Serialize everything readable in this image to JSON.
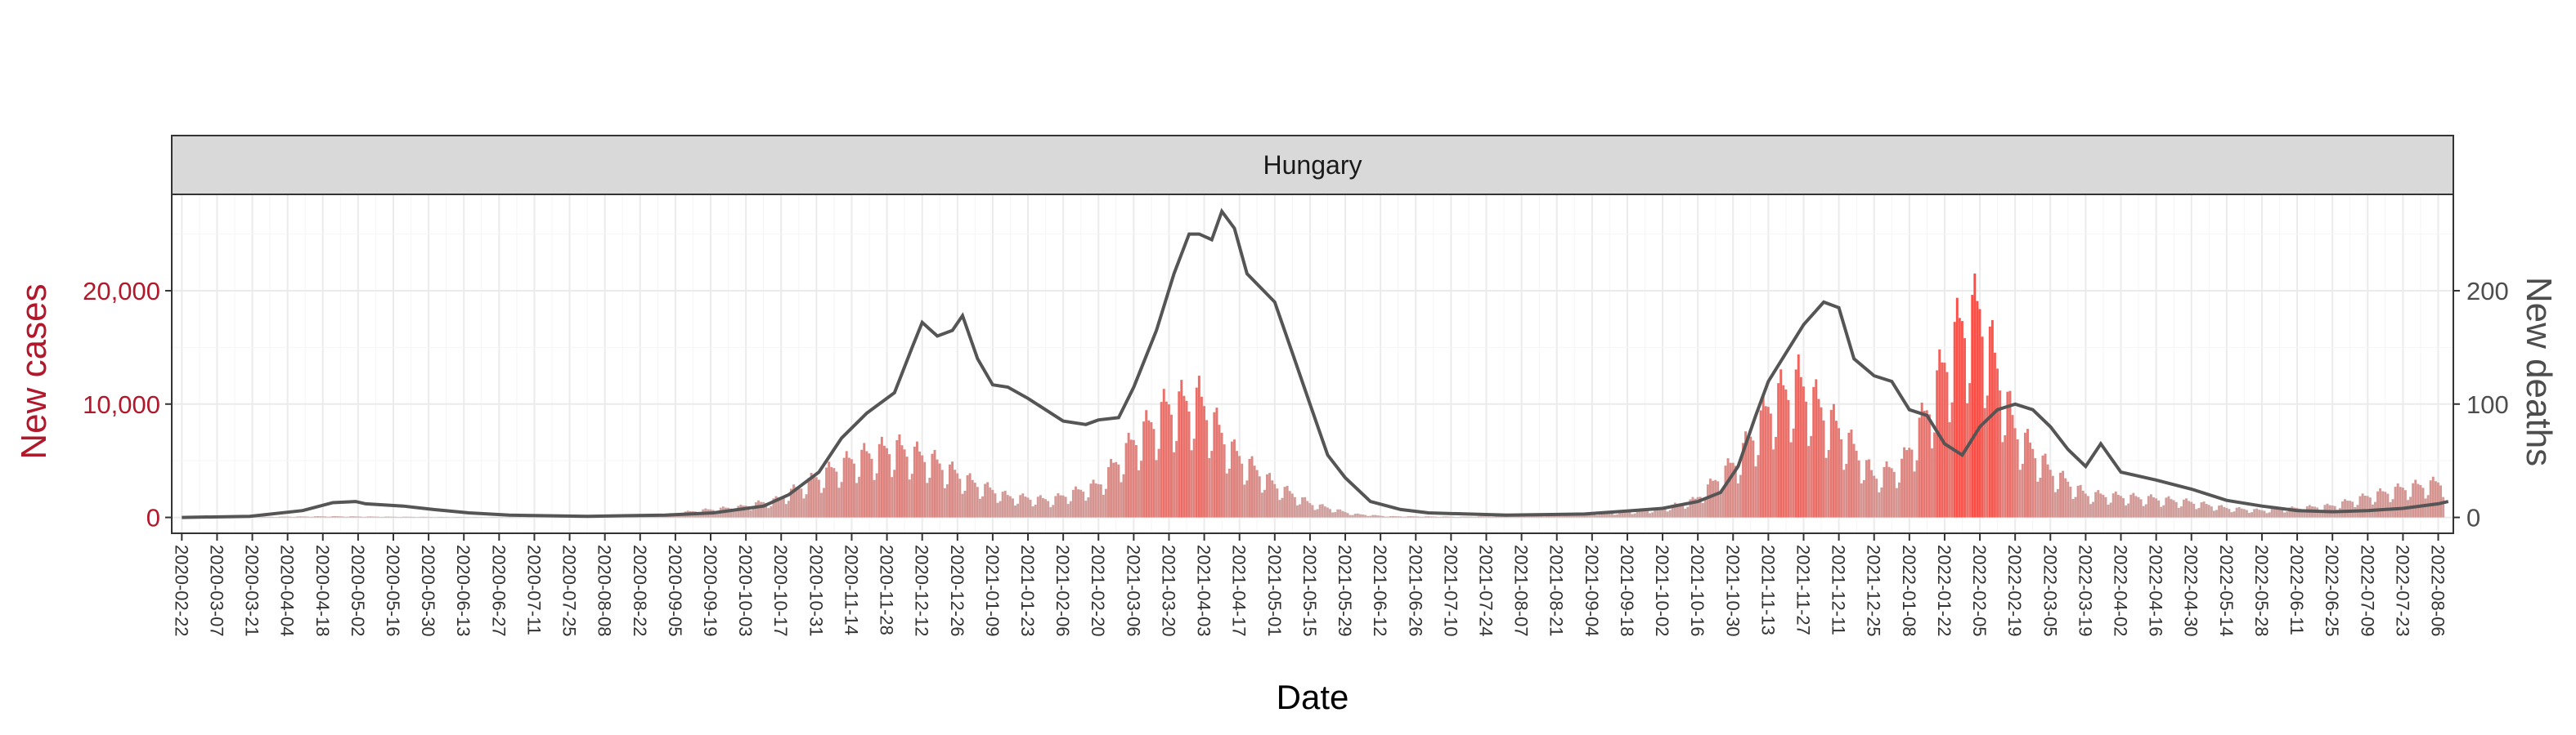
{
  "chart_data": {
    "type": "bar",
    "panel_title": "Hungary",
    "xlabel": "Date",
    "ylabel_left": "New cases",
    "ylabel_right": "New deaths",
    "ylim_left": [
      -1400,
      28500
    ],
    "ylim_right": [
      -14,
      285
    ],
    "yticks_left": [
      {
        "value": 0,
        "label": "0"
      },
      {
        "value": 10000,
        "label": "10,000"
      },
      {
        "value": 20000,
        "label": "20,000"
      }
    ],
    "yticks_right": [
      {
        "value": 0,
        "label": "0"
      },
      {
        "value": 100,
        "label": "100"
      },
      {
        "value": 200,
        "label": "200"
      }
    ],
    "x_range": [
      "2020-02-18",
      "2022-08-12"
    ],
    "x_tick_labels": [
      "2020-02-22",
      "2020-03-07",
      "2020-03-21",
      "2020-04-04",
      "2020-04-18",
      "2020-05-02",
      "2020-05-16",
      "2020-05-30",
      "2020-06-13",
      "2020-06-27",
      "2020-07-11",
      "2020-07-25",
      "2020-08-08",
      "2020-08-22",
      "2020-09-05",
      "2020-09-19",
      "2020-10-03",
      "2020-10-17",
      "2020-10-31",
      "2020-11-14",
      "2020-11-28",
      "2020-12-12",
      "2020-12-26",
      "2021-01-09",
      "2021-01-23",
      "2021-02-06",
      "2021-02-20",
      "2021-03-06",
      "2021-03-20",
      "2021-04-03",
      "2021-04-17",
      "2021-05-01",
      "2021-05-15",
      "2021-05-29",
      "2021-06-12",
      "2021-06-26",
      "2021-07-10",
      "2021-07-24",
      "2021-08-07",
      "2021-08-21",
      "2021-09-04",
      "2021-09-18",
      "2021-10-02",
      "2021-10-16",
      "2021-10-30",
      "2021-11-13",
      "2021-11-27",
      "2021-12-11",
      "2021-12-25",
      "2022-01-08",
      "2022-01-22",
      "2022-02-05",
      "2022-02-19",
      "2022-03-05",
      "2022-03-19",
      "2022-04-02",
      "2022-04-16",
      "2022-04-30",
      "2022-05-14",
      "2022-05-28",
      "2022-06-11",
      "2022-06-25",
      "2022-07-09",
      "2022-07-23",
      "2022-08-06"
    ],
    "grid": true,
    "cases_color_low": "#c9aaa8",
    "cases_color_high": "#ff4b42",
    "deaths_color": "#555555",
    "cases_series": {
      "name": "",
      "points": [
        [
          "2020-02-22",
          0
        ],
        [
          "2020-03-15",
          20
        ],
        [
          "2020-04-01",
          60
        ],
        [
          "2020-04-20",
          100
        ],
        [
          "2020-05-15",
          60
        ],
        [
          "2020-06-15",
          25
        ],
        [
          "2020-07-15",
          20
        ],
        [
          "2020-08-15",
          50
        ],
        [
          "2020-09-01",
          250
        ],
        [
          "2020-09-15",
          600
        ],
        [
          "2020-10-01",
          900
        ],
        [
          "2020-10-15",
          1500
        ],
        [
          "2020-11-01",
          3500
        ],
        [
          "2020-11-15",
          5000
        ],
        [
          "2020-12-01",
          6000
        ],
        [
          "2020-12-15",
          5000
        ],
        [
          "2021-01-01",
          3000
        ],
        [
          "2021-01-15",
          1800
        ],
        [
          "2021-02-01",
          1500
        ],
        [
          "2021-02-20",
          2800
        ],
        [
          "2021-03-06",
          6500
        ],
        [
          "2021-03-20",
          9500
        ],
        [
          "2021-04-01",
          10000
        ],
        [
          "2021-04-15",
          5500
        ],
        [
          "2021-05-01",
          2800
        ],
        [
          "2021-05-15",
          1200
        ],
        [
          "2021-06-01",
          300
        ],
        [
          "2021-06-15",
          100
        ],
        [
          "2021-07-15",
          60
        ],
        [
          "2021-08-15",
          150
        ],
        [
          "2021-09-15",
          400
        ],
        [
          "2021-10-01",
          700
        ],
        [
          "2021-10-15",
          1500
        ],
        [
          "2021-11-01",
          5000
        ],
        [
          "2021-11-15",
          10000
        ],
        [
          "2021-11-25",
          11500
        ],
        [
          "2021-12-05",
          9000
        ],
        [
          "2021-12-15",
          6500
        ],
        [
          "2021-12-25",
          3500
        ],
        [
          "2022-01-05",
          4500
        ],
        [
          "2022-01-15",
          9000
        ],
        [
          "2022-01-22",
          13000
        ],
        [
          "2022-01-29",
          16500
        ],
        [
          "2022-02-05",
          17500
        ],
        [
          "2022-02-12",
          12500
        ],
        [
          "2022-02-19",
          7500
        ],
        [
          "2022-03-05",
          4000
        ],
        [
          "2022-03-19",
          2000
        ],
        [
          "2022-04-02",
          1800
        ],
        [
          "2022-04-16",
          1600
        ],
        [
          "2022-04-30",
          1300
        ],
        [
          "2022-05-14",
          800
        ],
        [
          "2022-05-28",
          600
        ],
        [
          "2022-06-11",
          800
        ],
        [
          "2022-06-25",
          1000
        ],
        [
          "2022-07-09",
          1800
        ],
        [
          "2022-07-23",
          2500
        ],
        [
          "2022-08-08",
          3000
        ]
      ]
    },
    "deaths_series": {
      "name": "",
      "points": [
        [
          "2020-02-22",
          0
        ],
        [
          "2020-03-20",
          1
        ],
        [
          "2020-04-10",
          6
        ],
        [
          "2020-04-22",
          13
        ],
        [
          "2020-05-01",
          14
        ],
        [
          "2020-05-05",
          12
        ],
        [
          "2020-05-20",
          10
        ],
        [
          "2020-06-01",
          7
        ],
        [
          "2020-06-15",
          4
        ],
        [
          "2020-07-01",
          2
        ],
        [
          "2020-08-01",
          1
        ],
        [
          "2020-09-01",
          2
        ],
        [
          "2020-09-20",
          4
        ],
        [
          "2020-10-10",
          10
        ],
        [
          "2020-10-20",
          20
        ],
        [
          "2020-11-01",
          40
        ],
        [
          "2020-11-10",
          70
        ],
        [
          "2020-11-20",
          92
        ],
        [
          "2020-12-01",
          110
        ],
        [
          "2020-12-08",
          150
        ],
        [
          "2020-12-12",
          172
        ],
        [
          "2020-12-18",
          160
        ],
        [
          "2020-12-24",
          165
        ],
        [
          "2020-12-28",
          178
        ],
        [
          "2021-01-03",
          140
        ],
        [
          "2021-01-09",
          117
        ],
        [
          "2021-01-15",
          115
        ],
        [
          "2021-01-23",
          105
        ],
        [
          "2021-02-06",
          85
        ],
        [
          "2021-02-15",
          82
        ],
        [
          "2021-02-20",
          86
        ],
        [
          "2021-02-28",
          88
        ],
        [
          "2021-03-06",
          115
        ],
        [
          "2021-03-15",
          165
        ],
        [
          "2021-03-22",
          215
        ],
        [
          "2021-03-28",
          250
        ],
        [
          "2021-04-01",
          250
        ],
        [
          "2021-04-06",
          245
        ],
        [
          "2021-04-10",
          270
        ],
        [
          "2021-04-15",
          255
        ],
        [
          "2021-04-20",
          215
        ],
        [
          "2021-05-01",
          190
        ],
        [
          "2021-05-08",
          145
        ],
        [
          "2021-05-15",
          100
        ],
        [
          "2021-05-22",
          55
        ],
        [
          "2021-05-29",
          35
        ],
        [
          "2021-06-08",
          14
        ],
        [
          "2021-06-20",
          7
        ],
        [
          "2021-07-01",
          4
        ],
        [
          "2021-08-01",
          2
        ],
        [
          "2021-09-01",
          3
        ],
        [
          "2021-09-20",
          6
        ],
        [
          "2021-10-02",
          8
        ],
        [
          "2021-10-16",
          14
        ],
        [
          "2021-10-25",
          22
        ],
        [
          "2021-11-01",
          45
        ],
        [
          "2021-11-08",
          90
        ],
        [
          "2021-11-13",
          120
        ],
        [
          "2021-11-20",
          145
        ],
        [
          "2021-11-27",
          170
        ],
        [
          "2021-12-05",
          190
        ],
        [
          "2021-12-11",
          185
        ],
        [
          "2021-12-17",
          140
        ],
        [
          "2021-12-25",
          125
        ],
        [
          "2022-01-01",
          120
        ],
        [
          "2022-01-08",
          95
        ],
        [
          "2022-01-15",
          90
        ],
        [
          "2022-01-22",
          65
        ],
        [
          "2022-01-29",
          55
        ],
        [
          "2022-02-05",
          80
        ],
        [
          "2022-02-12",
          95
        ],
        [
          "2022-02-19",
          100
        ],
        [
          "2022-02-26",
          95
        ],
        [
          "2022-03-05",
          80
        ],
        [
          "2022-03-12",
          60
        ],
        [
          "2022-03-19",
          45
        ],
        [
          "2022-03-25",
          65
        ],
        [
          "2022-04-02",
          40
        ],
        [
          "2022-04-16",
          33
        ],
        [
          "2022-04-30",
          25
        ],
        [
          "2022-05-14",
          15
        ],
        [
          "2022-05-28",
          10
        ],
        [
          "2022-06-11",
          6
        ],
        [
          "2022-06-25",
          5
        ],
        [
          "2022-07-09",
          6
        ],
        [
          "2022-07-23",
          8
        ],
        [
          "2022-08-06",
          12
        ],
        [
          "2022-08-10",
          14
        ]
      ]
    }
  }
}
